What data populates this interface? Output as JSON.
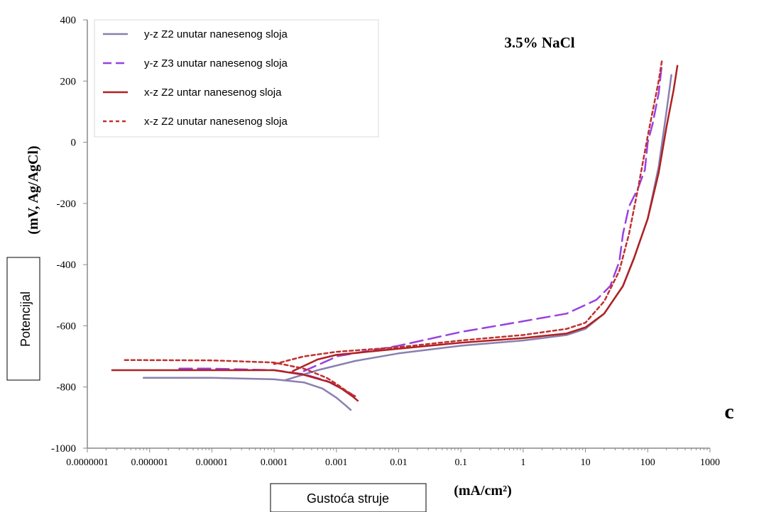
{
  "chart_data": {
    "type": "line",
    "title": "3.5% NaCl",
    "panel_label": "c",
    "x_scale": "log",
    "xlim": [
      1e-07,
      1000
    ],
    "ylim": [
      -1000,
      400
    ],
    "x_ticks": [
      1e-07,
      1e-06,
      1e-05,
      0.0001,
      0.001,
      0.01,
      0.1,
      1,
      10,
      100,
      1000
    ],
    "x_tick_labels": [
      "0.0000001",
      "0.000001",
      "0.00001",
      "0.0001",
      "0.001",
      "0.01",
      "0.1",
      "1",
      "10",
      "100",
      "1000"
    ],
    "y_ticks": [
      -1000,
      -800,
      -600,
      -400,
      -200,
      0,
      200,
      400
    ],
    "y_tick_labels": [
      "-1000",
      "-800",
      "-600",
      "-400",
      "-200",
      "0",
      "200",
      "400"
    ],
    "xlabel_box": "Gustoća struje",
    "xlabel_units": "(mA/cm²)",
    "ylabel_box": "Potencijal",
    "ylabel_units": "(mV, Ag/AgCl)",
    "grid": false,
    "legend_position": "top-left",
    "series": [
      {
        "name": "y-z Z2 unutar nanesenog sloja",
        "color": "#8a7fb0",
        "dash": "solid",
        "cathodic": [
          [
            8e-07,
            -770
          ],
          [
            1e-05,
            -770
          ],
          [
            0.0001,
            -775
          ],
          [
            0.0003,
            -785
          ],
          [
            0.0006,
            -805
          ],
          [
            0.001,
            -835
          ],
          [
            0.0014,
            -860
          ],
          [
            0.0017,
            -875
          ]
        ],
        "anodic": [
          [
            0.00015,
            -778
          ],
          [
            0.0005,
            -745
          ],
          [
            0.001,
            -730
          ],
          [
            0.002,
            -715
          ],
          [
            0.01,
            -690
          ],
          [
            0.1,
            -665
          ],
          [
            1,
            -648
          ],
          [
            5,
            -630
          ],
          [
            10,
            -610
          ],
          [
            20,
            -560
          ],
          [
            40,
            -470
          ],
          [
            60,
            -380
          ],
          [
            100,
            -250
          ],
          [
            150,
            -80
          ],
          [
            200,
            100
          ],
          [
            240,
            220
          ]
        ]
      },
      {
        "name": "y-z Z3 unutar nanesenog sloja",
        "color": "#9a40e0",
        "dash": "dashed",
        "cathodic": [
          [
            3e-06,
            -740
          ],
          [
            1e-05,
            -740
          ],
          [
            0.0001,
            -745
          ],
          [
            0.0003,
            -758
          ],
          [
            0.0007,
            -780
          ],
          [
            0.0012,
            -805
          ],
          [
            0.0018,
            -825
          ],
          [
            0.0022,
            -835
          ]
        ],
        "anodic": [
          [
            0.0003,
            -748
          ],
          [
            0.0008,
            -710
          ],
          [
            0.001,
            -700
          ],
          [
            0.01,
            -665
          ],
          [
            0.1,
            -620
          ],
          [
            1,
            -585
          ],
          [
            5,
            -560
          ],
          [
            15,
            -515
          ],
          [
            25,
            -470
          ],
          [
            35,
            -390
          ],
          [
            40,
            -300
          ],
          [
            50,
            -210
          ],
          [
            70,
            -150
          ],
          [
            90,
            -90
          ],
          [
            100,
            0
          ],
          [
            120,
            60
          ],
          [
            150,
            160
          ],
          [
            170,
            260
          ]
        ]
      },
      {
        "name": "x-z Z2 untar nanesenog sloja",
        "color": "#b02020",
        "dash": "solid",
        "cathodic": [
          [
            2.5e-07,
            -745
          ],
          [
            1e-05,
            -745
          ],
          [
            0.0001,
            -745
          ],
          [
            0.0003,
            -760
          ],
          [
            0.0008,
            -785
          ],
          [
            0.0012,
            -805
          ],
          [
            0.0018,
            -830
          ],
          [
            0.0022,
            -845
          ]
        ],
        "anodic": [
          [
            0.0002,
            -748
          ],
          [
            0.0005,
            -710
          ],
          [
            0.001,
            -695
          ],
          [
            0.01,
            -675
          ],
          [
            0.1,
            -655
          ],
          [
            1,
            -640
          ],
          [
            5,
            -625
          ],
          [
            10,
            -605
          ],
          [
            20,
            -560
          ],
          [
            40,
            -470
          ],
          [
            60,
            -380
          ],
          [
            100,
            -250
          ],
          [
            150,
            -100
          ],
          [
            200,
            50
          ],
          [
            260,
            170
          ],
          [
            300,
            250
          ]
        ]
      },
      {
        "name": "x-z Z2 unutar nanesenog sloja",
        "color": "#c03030",
        "dash": "dotted",
        "cathodic": [
          [
            4e-07,
            -712
          ],
          [
            1e-05,
            -713
          ],
          [
            0.0001,
            -720
          ],
          [
            0.0003,
            -740
          ],
          [
            0.0007,
            -770
          ],
          [
            0.001,
            -790
          ],
          [
            0.0015,
            -815
          ],
          [
            0.002,
            -830
          ]
        ],
        "anodic": [
          [
            0.0001,
            -725
          ],
          [
            0.0003,
            -700
          ],
          [
            0.001,
            -685
          ],
          [
            0.01,
            -670
          ],
          [
            0.1,
            -648
          ],
          [
            1,
            -630
          ],
          [
            5,
            -610
          ],
          [
            10,
            -590
          ],
          [
            20,
            -520
          ],
          [
            35,
            -420
          ],
          [
            50,
            -300
          ],
          [
            70,
            -150
          ],
          [
            100,
            20
          ],
          [
            150,
            200
          ],
          [
            170,
            270
          ]
        ]
      }
    ]
  }
}
